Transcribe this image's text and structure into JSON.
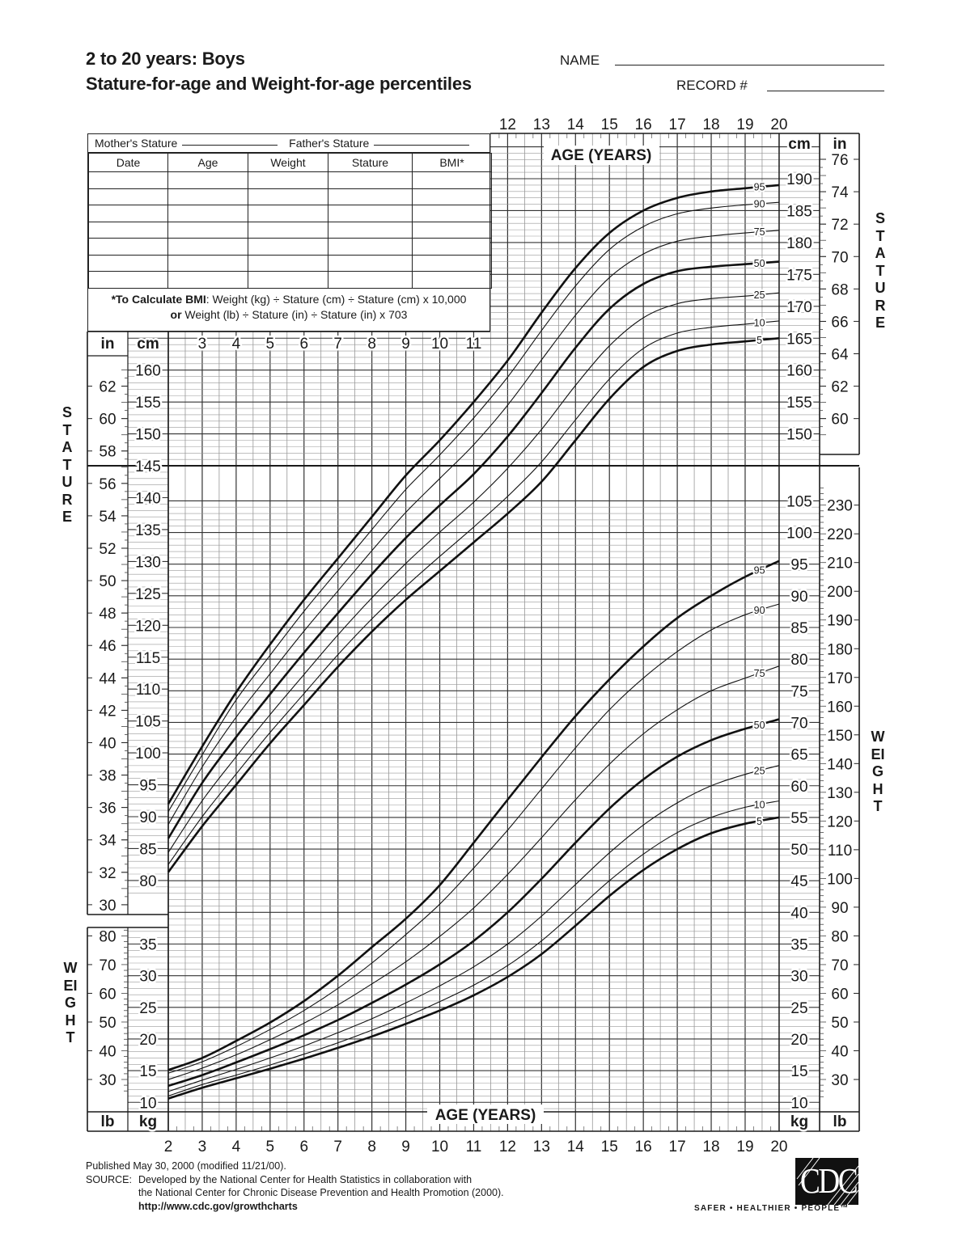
{
  "header": {
    "title_line1": "2 to 20 years: Boys",
    "title_line2": "Stature-for-age and Weight-for-age percentiles",
    "name_label": "NAME",
    "record_label": "RECORD #"
  },
  "form": {
    "mothers_stature": "Mother's Stature",
    "fathers_stature": "Father's Stature",
    "columns": [
      "Date",
      "Age",
      "Weight",
      "Stature",
      "BMI*"
    ],
    "bmi_note_bold": "*To Calculate BMI",
    "bmi_note_line1": ": Weight (kg) ÷ Stature (cm) ÷ Stature (cm) x 10,000",
    "bmi_note_or": "or",
    "bmi_note_line2": " Weight (lb) ÷ Stature (in) ÷ Stature (in) x 703"
  },
  "axis_labels": {
    "in": "in",
    "cm": "cm",
    "kg": "kg",
    "lb": "lb",
    "age_years": "AGE (YEARS)",
    "stature": "STATURE",
    "weight": "WEIGHT"
  },
  "ticks": {
    "age_bottom": [
      2,
      3,
      4,
      5,
      6,
      7,
      8,
      9,
      10,
      11,
      12,
      13,
      14,
      15,
      16,
      17,
      18,
      19,
      20
    ],
    "age_top": [
      12,
      13,
      14,
      15,
      16,
      17,
      18,
      19,
      20
    ],
    "age_inner": [
      3,
      4,
      5,
      6,
      7,
      8,
      9,
      10,
      11
    ],
    "cm_left": [
      80,
      85,
      90,
      95,
      100,
      105,
      110,
      115,
      120,
      125,
      130,
      135,
      140,
      145,
      150,
      155,
      160
    ],
    "cm_right": [
      150,
      155,
      160,
      165,
      170,
      175,
      180,
      185,
      190
    ],
    "in_left": [
      30,
      32,
      34,
      36,
      38,
      40,
      42,
      44,
      46,
      48,
      50,
      52,
      54,
      56,
      58,
      60,
      62
    ],
    "in_right": [
      60,
      62,
      64,
      66,
      68,
      70,
      72,
      74,
      76
    ],
    "kg_left": [
      10,
      15,
      20,
      25,
      30,
      35
    ],
    "kg_right": [
      10,
      15,
      20,
      25,
      30,
      35,
      40,
      45,
      50,
      55,
      60,
      65,
      70,
      75,
      80,
      85,
      90,
      95,
      100,
      105
    ],
    "lb_left": [
      30,
      40,
      50,
      60,
      70,
      80
    ],
    "lb_right": [
      30,
      40,
      50,
      60,
      70,
      80,
      90,
      100,
      110,
      120,
      130,
      140,
      150,
      160,
      170,
      180,
      190,
      200,
      210,
      220,
      230
    ]
  },
  "chart_data": [
    {
      "type": "line",
      "title": "Stature-for-age",
      "xlabel": "AGE (YEARS)",
      "ylabel": "STATURE",
      "y_unit": "cm",
      "xlim": [
        2,
        20
      ],
      "ylim": [
        80,
        190
      ],
      "grid": true,
      "x": [
        2,
        3,
        4,
        5,
        6,
        7,
        8,
        9,
        10,
        11,
        12,
        13,
        14,
        15,
        16,
        17,
        18,
        19,
        20
      ],
      "series": [
        {
          "name": "95",
          "bold": true,
          "values": [
            92.0,
            101.0,
            109.5,
            117.0,
            124.0,
            130.5,
            137.0,
            143.5,
            149.0,
            155.0,
            161.5,
            169.0,
            176.0,
            181.5,
            185.0,
            187.0,
            188.0,
            188.5,
            189.0
          ]
        },
        {
          "name": "90",
          "bold": false,
          "values": [
            90.8,
            99.7,
            108.3,
            115.3,
            122.2,
            128.6,
            135.0,
            141.3,
            146.7,
            152.5,
            158.9,
            166.2,
            173.2,
            178.9,
            182.5,
            184.5,
            185.4,
            185.9,
            186.3
          ]
        },
        {
          "name": "75",
          "bold": false,
          "values": [
            88.8,
            97.8,
            105.6,
            112.4,
            119.1,
            125.4,
            131.7,
            137.7,
            143.0,
            148.3,
            154.5,
            161.6,
            168.6,
            174.5,
            178.2,
            180.2,
            181.0,
            181.5,
            181.9
          ]
        },
        {
          "name": "50",
          "bold": true,
          "values": [
            86.6,
            95.3,
            102.5,
            109.2,
            115.7,
            121.9,
            128.0,
            133.7,
            138.8,
            143.7,
            149.6,
            156.4,
            163.5,
            169.6,
            173.5,
            175.5,
            176.2,
            176.6,
            177.0
          ]
        },
        {
          "name": "25",
          "bold": false,
          "values": [
            84.4,
            92.5,
            99.4,
            106.0,
            112.3,
            118.5,
            124.3,
            129.7,
            134.6,
            139.3,
            144.6,
            150.7,
            157.6,
            163.8,
            168.2,
            170.4,
            171.2,
            171.6,
            172.1
          ]
        },
        {
          "name": "10",
          "bold": false,
          "values": [
            82.5,
            90.0,
            96.7,
            103.2,
            109.3,
            115.4,
            121.0,
            126.1,
            130.8,
            135.4,
            140.2,
            145.6,
            152.2,
            158.6,
            163.4,
            165.8,
            166.7,
            167.2,
            167.7
          ]
        },
        {
          "name": "5",
          "bold": true,
          "values": [
            81.3,
            88.5,
            95.0,
            101.5,
            107.5,
            113.5,
            119.0,
            124.0,
            128.5,
            133.0,
            137.5,
            142.5,
            149.0,
            155.5,
            160.5,
            163.0,
            164.0,
            164.5,
            165.0
          ]
        }
      ]
    },
    {
      "type": "line",
      "title": "Weight-for-age",
      "xlabel": "AGE (YEARS)",
      "ylabel": "WEIGHT",
      "y_unit": "kg",
      "xlim": [
        2,
        20
      ],
      "ylim": [
        10,
        105
      ],
      "grid": true,
      "x": [
        2,
        3,
        4,
        5,
        6,
        7,
        8,
        9,
        10,
        11,
        12,
        13,
        14,
        15,
        16,
        17,
        18,
        19,
        20
      ],
      "series": [
        {
          "name": "95",
          "bold": true,
          "values": [
            15.1,
            17.0,
            19.7,
            22.6,
            26.0,
            30.0,
            34.5,
            39.0,
            44.3,
            51.0,
            57.8,
            64.5,
            71.0,
            76.8,
            82.0,
            86.5,
            90.0,
            93.0,
            95.5
          ]
        },
        {
          "name": "90",
          "bold": false,
          "values": [
            14.6,
            16.4,
            18.8,
            21.5,
            24.5,
            28.0,
            32.0,
            36.5,
            41.3,
            47.0,
            53.0,
            59.5,
            66.0,
            72.0,
            77.0,
            81.2,
            84.6,
            87.0,
            88.7
          ]
        },
        {
          "name": "75",
          "bold": false,
          "values": [
            13.6,
            15.4,
            17.5,
            19.9,
            22.5,
            25.4,
            28.7,
            32.2,
            36.2,
            40.7,
            46.0,
            51.8,
            57.8,
            63.4,
            68.2,
            72.0,
            75.0,
            77.0,
            78.9
          ]
        },
        {
          "name": "50",
          "bold": true,
          "values": [
            12.6,
            14.3,
            16.3,
            18.4,
            20.6,
            23.0,
            25.7,
            28.6,
            31.8,
            35.5,
            40.0,
            45.3,
            51.0,
            56.4,
            61.0,
            64.6,
            67.2,
            69.0,
            70.5
          ]
        },
        {
          "name": "25",
          "bold": false,
          "values": [
            11.7,
            13.5,
            15.2,
            17.0,
            18.9,
            21.0,
            23.2,
            25.7,
            28.4,
            31.4,
            35.0,
            39.4,
            44.4,
            49.4,
            53.8,
            57.3,
            60.0,
            61.8,
            63.2
          ]
        },
        {
          "name": "10",
          "bold": false,
          "values": [
            11.0,
            12.8,
            14.3,
            15.9,
            17.6,
            19.4,
            21.4,
            23.5,
            25.9,
            28.5,
            31.6,
            35.5,
            40.2,
            45.0,
            49.2,
            52.6,
            55.0,
            56.6,
            57.6
          ]
        },
        {
          "name": "5",
          "bold": true,
          "values": [
            10.6,
            12.3,
            13.8,
            15.3,
            16.9,
            18.6,
            20.4,
            22.4,
            24.5,
            26.9,
            29.8,
            33.4,
            37.9,
            42.6,
            46.7,
            50.0,
            52.5,
            54.0,
            55.0
          ]
        }
      ]
    }
  ],
  "footer": {
    "published": "Published May 30, 2000 (modified 11/21/00).",
    "source_label": "SOURCE:",
    "source_line1": "Developed by the National Center for Health Statistics in collaboration with",
    "source_line2": "the National Center for Chronic Disease Prevention and Health Promotion (2000).",
    "url": "http://www.cdc.gov/growthcharts"
  },
  "logo": {
    "text": "CDC",
    "tagline": "SAFER • HEALTHIER • PEOPLE™"
  }
}
